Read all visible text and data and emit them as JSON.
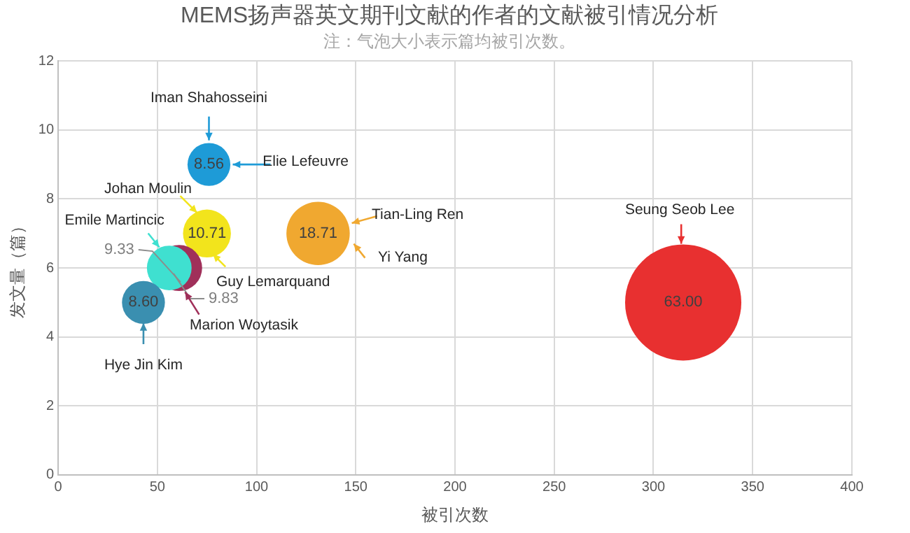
{
  "chart_data": {
    "type": "bubble",
    "title": "MEMS扬声器英文期刊文献的作者的文献被引情况分析",
    "subtitle": "注：气泡大小表示篇均被引次数。",
    "xlabel": "被引次数",
    "ylabel": "发文量（篇）",
    "x": [
      76,
      75,
      131,
      61,
      56,
      43,
      315
    ],
    "values": [
      9,
      7,
      7,
      6,
      6,
      5,
      5
    ],
    "sizes": [
      8.56,
      10.71,
      18.71,
      9.83,
      9.33,
      8.6,
      63.0
    ],
    "value_labels": [
      "8.56",
      "10.71",
      "18.71",
      "9.83",
      "9.33",
      "8.60",
      "63.00"
    ],
    "colors": [
      "#1e9bd7",
      "#f2e41c",
      "#f0a830",
      "#a0305a",
      "#3fe0d0",
      "#3a8fb0",
      "#e83030"
    ],
    "xlim": [
      0,
      400
    ],
    "xticks": [
      0,
      50,
      100,
      150,
      200,
      250,
      300,
      350,
      400
    ],
    "ylim": [
      0,
      12
    ],
    "yticks": [
      0,
      2,
      4,
      6,
      8,
      10,
      12
    ],
    "grid": true,
    "legend": false,
    "annotations": [
      {
        "text": "Iman Shahosseini",
        "x": 76,
        "y": 9.7
      },
      {
        "text": "Elie Lefeuvre",
        "x": 88,
        "y": 9
      },
      {
        "text": "Johan Moulin",
        "x": 70,
        "y": 7.6
      },
      {
        "text": "Guy Lemarquand",
        "x": 78,
        "y": 6.4
      },
      {
        "text": "Tian-Ling Ren",
        "x": 148,
        "y": 7.3
      },
      {
        "text": "Yi Yang",
        "x": 149,
        "y": 6.7
      },
      {
        "text": "Emile Martincic",
        "x": 51,
        "y": 6.6
      },
      {
        "text": "Marion Woytasik",
        "x": 64,
        "y": 5.3
      },
      {
        "text": "Hye Jin Kim",
        "x": 43,
        "y": 4.4
      },
      {
        "text": "Seung Seob Lee",
        "x": 314,
        "y": 6.7
      }
    ]
  }
}
